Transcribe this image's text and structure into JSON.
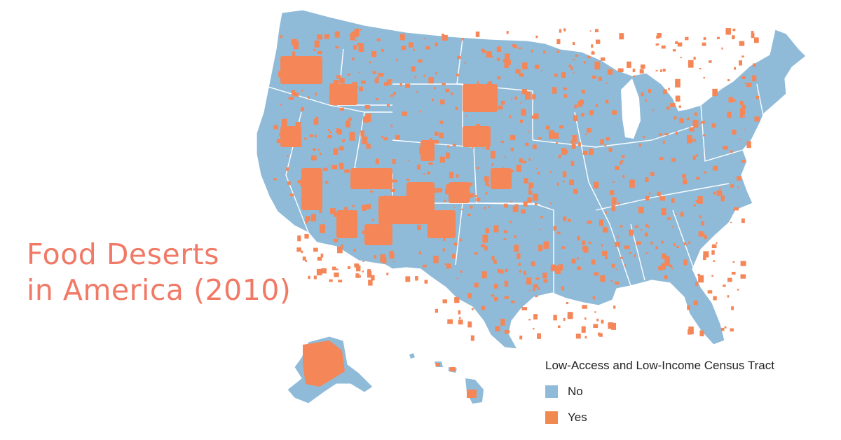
{
  "title": {
    "line1": "Food Deserts",
    "line2": "in America (2010)"
  },
  "legend": {
    "title": "Low-Access and Low-Income Census Tract",
    "items": [
      {
        "label": "No",
        "color": "#8fbbd9"
      },
      {
        "label": "Yes",
        "color": "#f08a50"
      }
    ]
  },
  "colors": {
    "no": "#8fbbd9",
    "yes": "#f48658",
    "border": "#ffffff",
    "title": "#f07a66"
  }
}
